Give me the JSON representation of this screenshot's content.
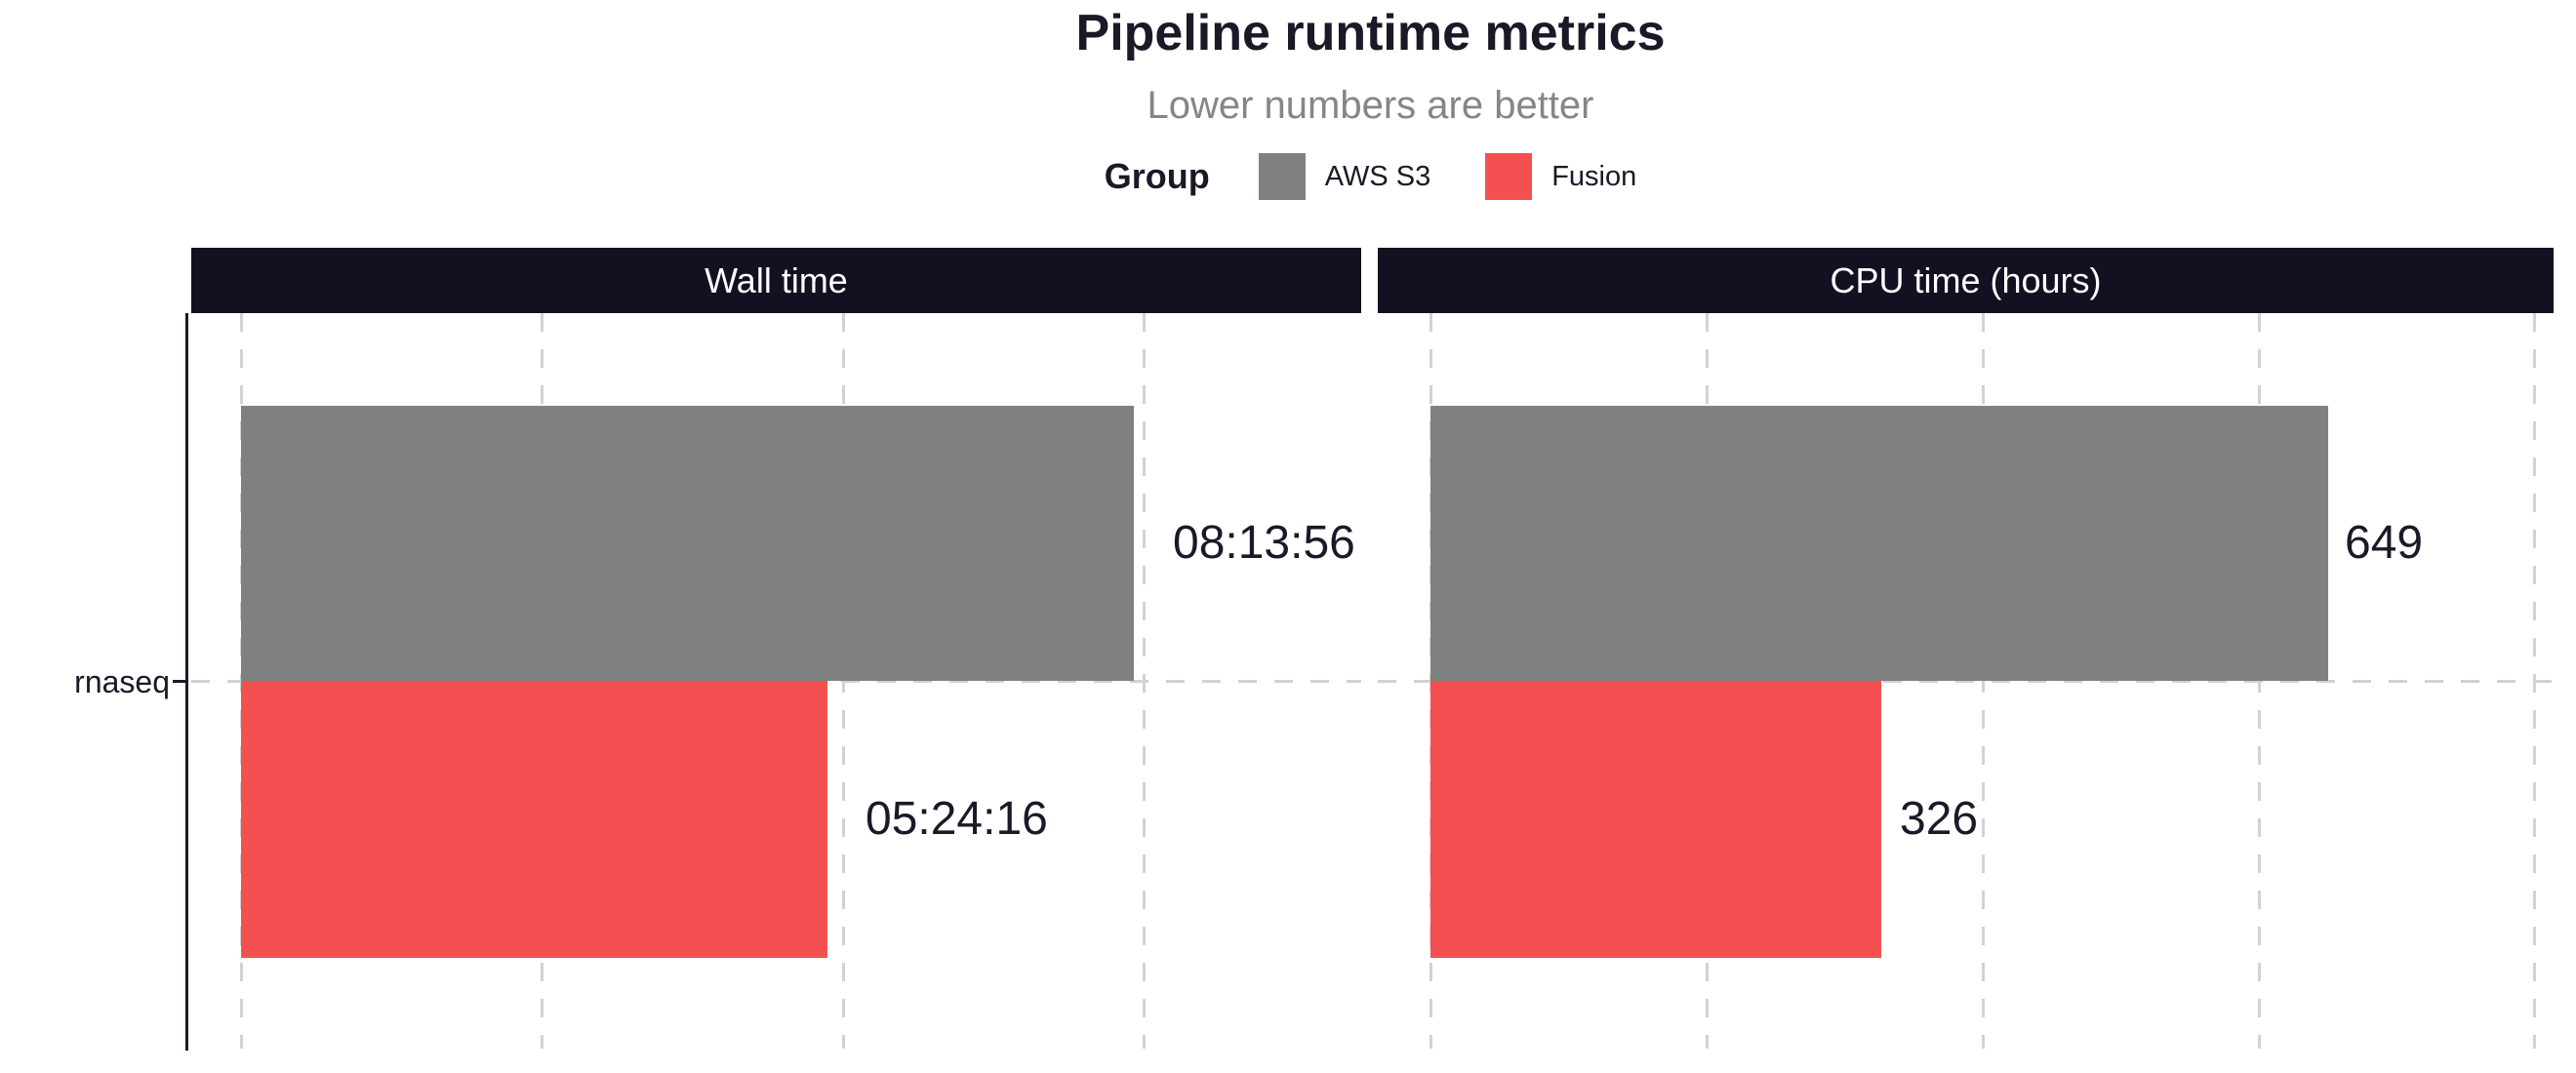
{
  "title": "Pipeline runtime metrics",
  "subtitle": "Lower numbers are better",
  "legend": {
    "title": "Group",
    "position": "top",
    "items": [
      {
        "label": "AWS S3",
        "color": "#7f8080"
      },
      {
        "label": "Fusion",
        "color": "#f45052"
      }
    ]
  },
  "y_axis": {
    "category": "rnaseq"
  },
  "colors": {
    "title_text": "#1b1828",
    "subtitle_text": "#858585",
    "strip_background": "#131021",
    "strip_text": "#ffffff",
    "gridline": "#d2d2d2",
    "axis_line": "#1b1828",
    "background": "#ffffff"
  },
  "chart_data": {
    "type": "bar",
    "orientation": "horizontal",
    "title": "Pipeline runtime metrics",
    "subtitle": "Lower numbers are better",
    "legend_title": "Group",
    "legend_entries": [
      "AWS S3",
      "Fusion"
    ],
    "categories": [
      "rnaseq"
    ],
    "grid": "dashed major vertical, dashed horizontal at category",
    "x_tick_labels_shown": false,
    "facets": [
      {
        "title": "Wall time",
        "unit": "seconds (labelled hh:mm:ss)",
        "gridlines": [
          0,
          10000,
          20000,
          30000
        ],
        "xlim": [
          0,
          39000
        ],
        "bars": [
          {
            "group": "AWS S3",
            "value": 29636,
            "label": "08:13:56"
          },
          {
            "group": "Fusion",
            "value": 19456,
            "label": "05:24:16"
          }
        ]
      },
      {
        "title": "CPU time (hours)",
        "unit": "hours",
        "gridlines": [
          0,
          200,
          400,
          600,
          800
        ],
        "xlim": [
          0,
          812
        ],
        "bars": [
          {
            "group": "AWS S3",
            "value": 649,
            "label": "649"
          },
          {
            "group": "Fusion",
            "value": 326,
            "label": "326"
          }
        ]
      }
    ]
  }
}
